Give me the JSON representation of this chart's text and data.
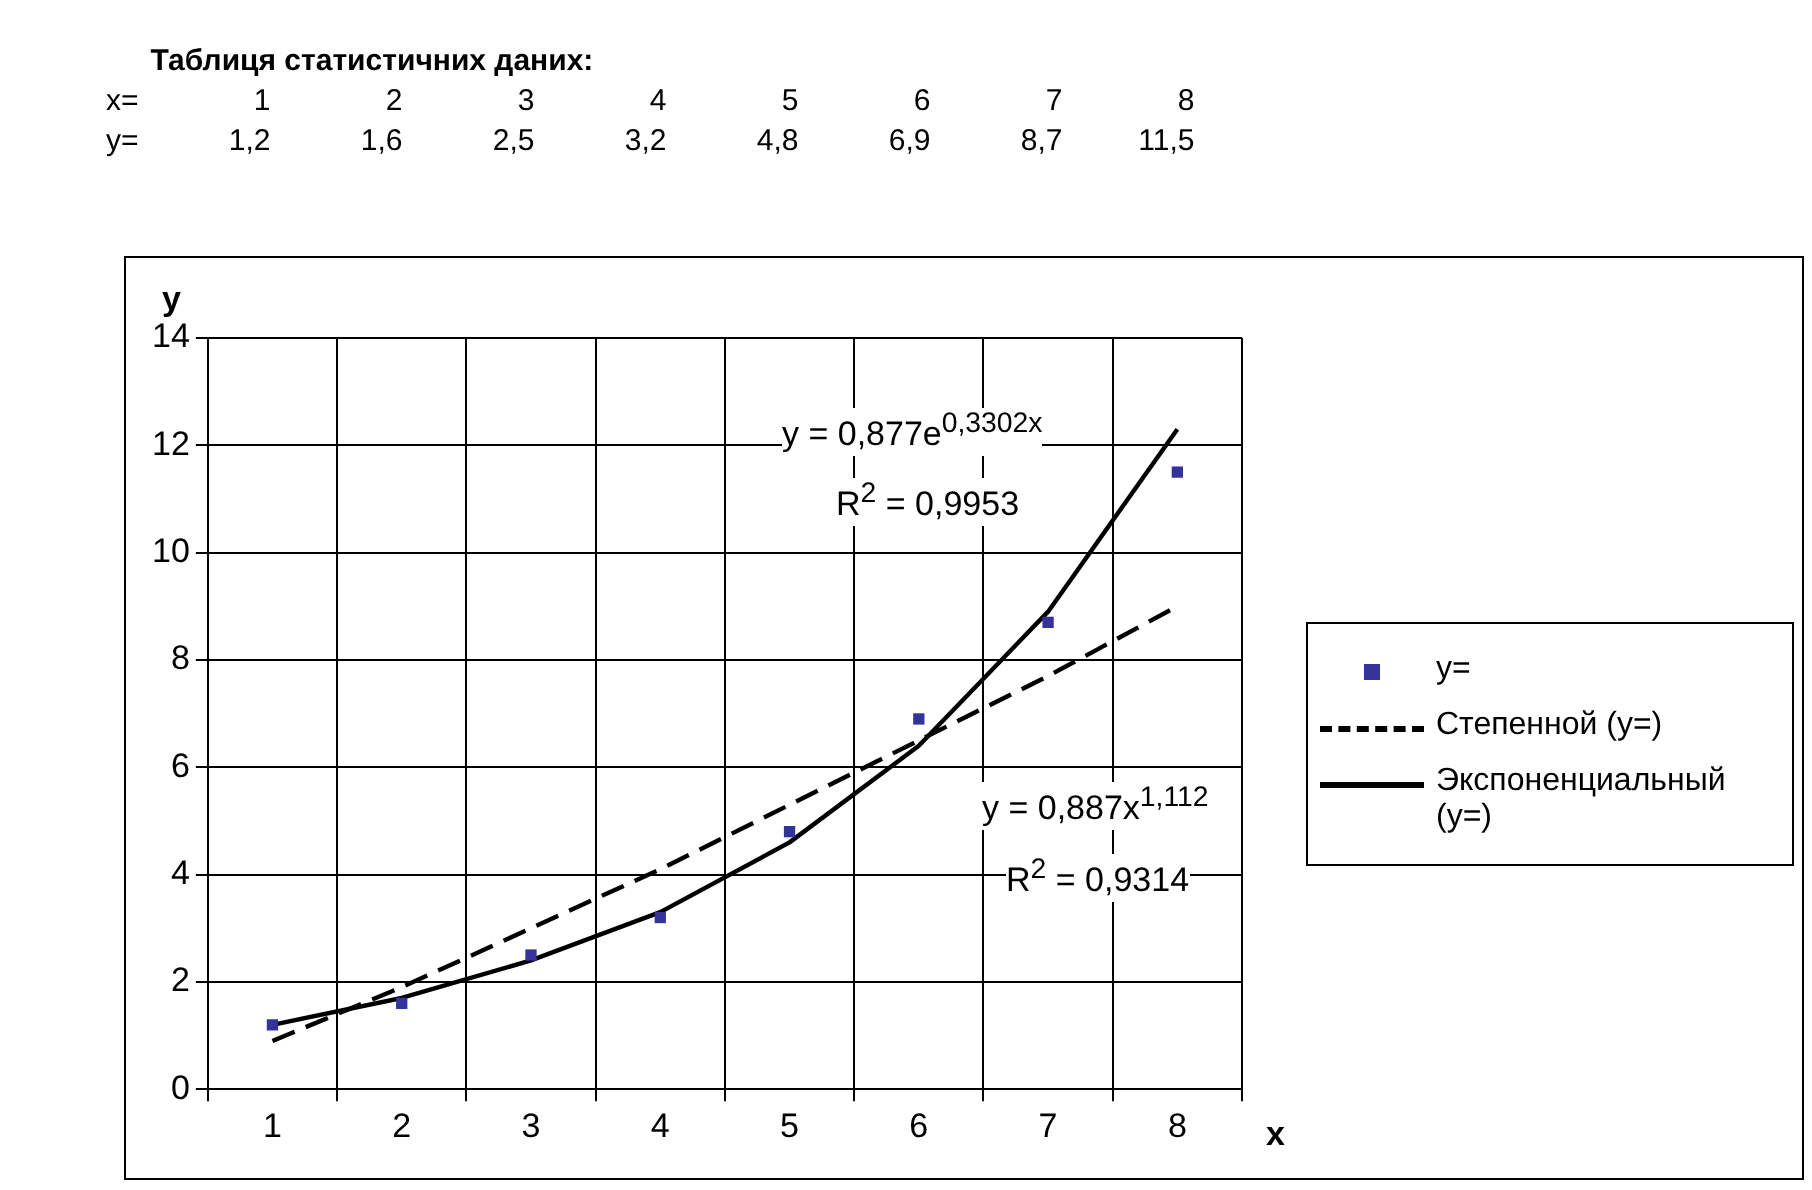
{
  "chart_data": {
    "type": "scatter",
    "title": "Таблиця статистичних даних:",
    "xlabel": "x",
    "ylabel": "y",
    "categories": [
      "1",
      "2",
      "3",
      "4",
      "5",
      "6",
      "7",
      "8"
    ],
    "series": [
      {
        "name": "y=",
        "color": "#333399",
        "marker": "square",
        "values": [
          1.2,
          1.6,
          2.5,
          3.2,
          4.8,
          6.9,
          8.7,
          11.5
        ],
        "value_labels": [
          "1,2",
          "1,6",
          "2,5",
          "3,2",
          "4,8",
          "6,9",
          "8,7",
          "11,5"
        ]
      },
      {
        "name": "Степенной (y=)",
        "type": "line",
        "line_style": "dashed",
        "marker": "none",
        "color": "#000000",
        "values": [
          0.9,
          1.9,
          3.0,
          4.1,
          5.3,
          6.5,
          7.7,
          9.0
        ]
      },
      {
        "name": "Экспоненциальный (y=)",
        "type": "line",
        "line_style": "solid",
        "marker": "none",
        "color": "#000000",
        "values": [
          1.2,
          1.7,
          2.4,
          3.3,
          4.6,
          6.4,
          8.9,
          12.3
        ]
      }
    ],
    "ylim": [
      0,
      14
    ],
    "yticks": [
      0,
      2,
      4,
      6,
      8,
      10,
      12,
      14
    ],
    "grid": true,
    "legend": "right",
    "annotations": [
      "x=",
      "y = 0,877e$^{0,3302x}$",
      "R$^{2}$ = 0,9953",
      "y = 0,887x$^{1,112}$",
      "R$^{2}$ = 0,9314"
    ]
  }
}
